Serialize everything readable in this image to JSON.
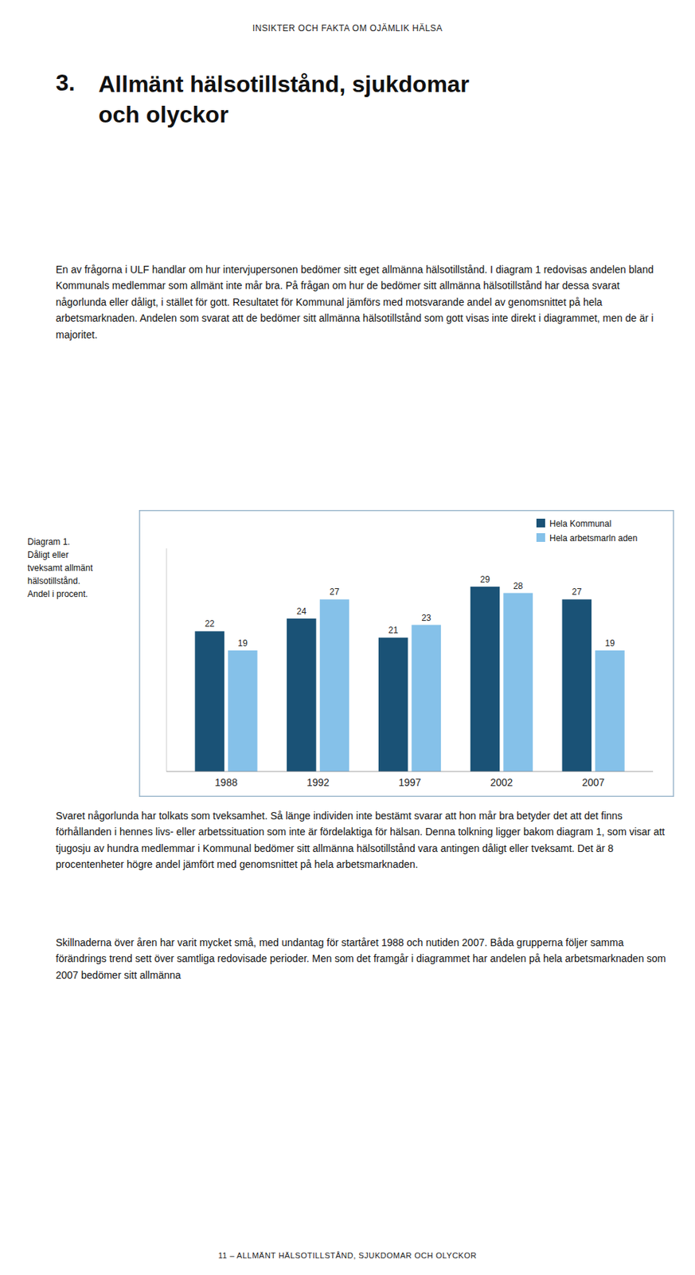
{
  "header": "INSIKTER OCH FAKTA OM OJÄMLIK HÄLSA",
  "chapter_number": "3.",
  "chapter_title": "Allmänt hälsotillstånd, sjukdomar\noch olyckor",
  "paragraphs": [
    "En av frågorna i ULF handlar om hur intervjupersonen bedömer sitt eget allmänna hälsotillstånd. I diagram 1 redovisas andelen bland Kommunals medlemmar som allmänt inte mår bra. På frågan om hur de bedömer sitt allmänna hälsotillstånd har dessa svarat någorlunda eller dåligt, i stället för gott.  Resultatet för Kommunal jämförs med motsvarande andel av genomsnittet på hela arbetsmarknaden. Andelen som svarat att de bedömer sitt allmänna hälsotillstånd som gott visas inte direkt i diagrammet, men de är i majoritet.",
    "Svaret någorlunda har tolkats som tveksamhet. Så länge individen inte bestämt svarar att hon mår bra betyder det att det finns förhållanden i hennes livs- eller arbetssituation som inte är fördelaktiga för hälsan. Denna tolkning ligger bakom diagram 1, som visar att tjugosju av hundra medlemmar i Kommunal bedömer sitt allmänna hälsotillstånd vara antingen dåligt eller tveksamt. Det är 8 procentenheter högre andel jämfört med genomsnittet på hela arbetsmarknaden.",
    "Skillnaderna över åren har varit mycket små, med undantag för startåret 1988 och nutiden 2007. Båda grupperna följer samma förändrings trend sett över samtliga redovisade perioder. Men som det framgår i diagrammet har andelen på hela arbetsmarknaden som 2007 bedömer sitt allmänna"
  ],
  "footer": "11 – ALLMÄNT HÄLSOTILLSTÅND, SJUKDOMAR OCH OLYCKOR",
  "chart_data": {
    "type": "bar",
    "title": "Diagram 1.\nDåligt eller\ntveksamt allmänt\nhälsotillstånd.\nAndel i procent.",
    "categories": [
      "1988",
      "1992",
      "1997",
      "2002",
      "2007"
    ],
    "series": [
      {
        "name": "Hela Kommunal",
        "color": "#1a5276",
        "values": [
          22,
          24,
          21,
          29,
          27
        ]
      },
      {
        "name": "Hela arbetsmarln aden",
        "color": "#85c1e9",
        "values": [
          19,
          27,
          23,
          28,
          19
        ]
      }
    ],
    "ylim": [
      0,
      35
    ],
    "grid": false,
    "legend": "upper right",
    "data_labels": true,
    "tick_labels": "x"
  }
}
